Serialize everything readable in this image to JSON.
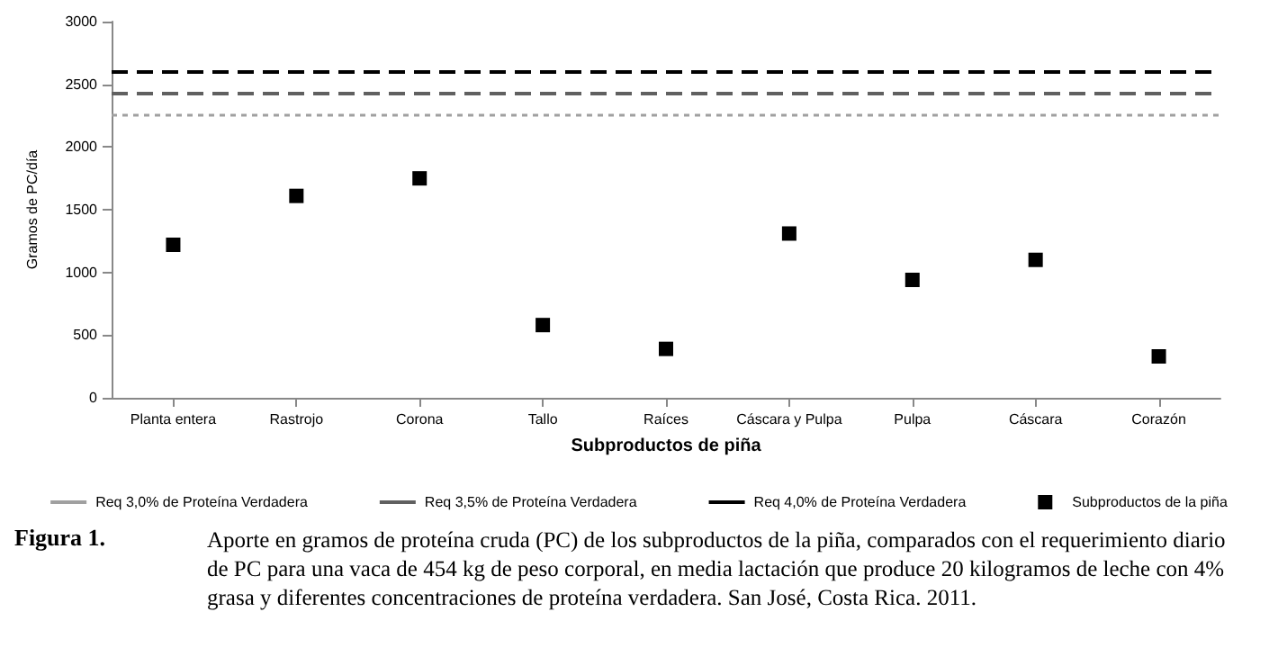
{
  "chart_data": {
    "type": "scatter",
    "xlabel": "Subproductos de piña",
    "ylabel": "Gramos de PC/día",
    "categories": [
      "Planta entera",
      "Rastrojo",
      "Corona",
      "Tallo",
      "Raíces",
      "Cáscara y Pulpa",
      "Pulpa",
      "Cáscara",
      "Corazón"
    ],
    "series": [
      {
        "name": "Subproductos de la piña",
        "color": "#000000",
        "values": [
          1220,
          1610,
          1750,
          580,
          390,
          1310,
          940,
          1100,
          330
        ]
      }
    ],
    "ref_lines": [
      {
        "axis": "y",
        "value": 2260,
        "label": "Req 3,0% de Proteína Verdadera",
        "color": "#a0a0a0",
        "line_style": "dotted"
      },
      {
        "axis": "y",
        "value": 2430,
        "label": "Req 3,5% de Proteína Verdadera",
        "color": "#606060",
        "line_style": "dashed"
      },
      {
        "axis": "y",
        "value": 2600,
        "label": "Req 4,0% de Proteína Verdadera",
        "color": "#000000",
        "line_style": "dashed"
      }
    ],
    "ylim": [
      0,
      3000
    ],
    "yticks": [
      0,
      500,
      1000,
      1500,
      2000,
      2500,
      3000
    ],
    "grid": false,
    "legend": "bottom",
    "marker": "square",
    "annotations": [
      "Figura 1.",
      "Aporte en gramos de proteína cruda (PC) de los subproductos de la piña, comparados con el requerimiento diario de PC para una vaca de 454 kg de peso corporal, en media lactación que produce 20 kilogramos de leche con 4% grasa y diferentes concentraciones de proteína verdadera. San José, Costa Rica. 2011."
    ]
  }
}
